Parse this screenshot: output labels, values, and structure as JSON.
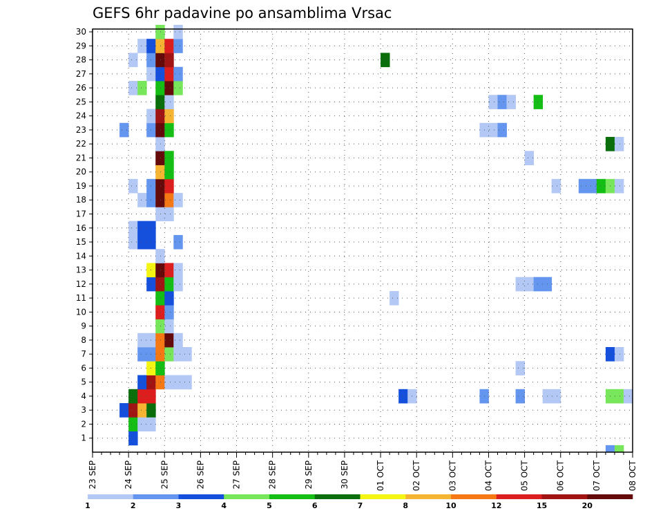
{
  "chart_data": {
    "type": "heatmap",
    "title": "GEFS 6hr padavine po ansamblima Vrsac",
    "xlabel": "",
    "ylabel": "",
    "y_ticks": [
      1,
      2,
      3,
      4,
      5,
      6,
      7,
      8,
      9,
      10,
      11,
      12,
      13,
      14,
      15,
      16,
      17,
      18,
      19,
      20,
      21,
      22,
      23,
      24,
      25,
      26,
      27,
      28,
      29,
      30
    ],
    "ylim": [
      0,
      30
    ],
    "x_ticks": [
      "23 SEP",
      "24 SEP",
      "25 SEP",
      "26 SEP",
      "27 SEP",
      "28 SEP",
      "29 SEP",
      "30 SEP",
      "01 OCT",
      "02 OCT",
      "03 OCT",
      "04 OCT",
      "05 OCT",
      "06 OCT",
      "07 OCT",
      "08 OCT"
    ],
    "x_unit": "6-hour step (4 per day) starting 23 SEP 00Z",
    "xlim": [
      0,
      60
    ],
    "grid": true,
    "colorbar": {
      "labels": [
        "1",
        "2",
        "3",
        "4",
        "5",
        "6",
        "7",
        "8",
        "10",
        "12",
        "15",
        "20"
      ],
      "colors": [
        "#b4c8f5",
        "#6496f0",
        "#1450dc",
        "#78e65a",
        "#14be14",
        "#0a6e0a",
        "#f5f514",
        "#f5b432",
        "#f57814",
        "#dc1e1e",
        "#a01414",
        "#640a0a"
      ]
    },
    "cells": [
      [
        1,
        4,
        3
      ],
      [
        2,
        4,
        5
      ],
      [
        2,
        5,
        1
      ],
      [
        2,
        6,
        1
      ],
      [
        3,
        3,
        3
      ],
      [
        3,
        4,
        11
      ],
      [
        3,
        5,
        8
      ],
      [
        3,
        6,
        6
      ],
      [
        4,
        4,
        6
      ],
      [
        4,
        5,
        10
      ],
      [
        4,
        6,
        10
      ],
      [
        5,
        5,
        3
      ],
      [
        5,
        6,
        11
      ],
      [
        5,
        7,
        9
      ],
      [
        5,
        8,
        1
      ],
      [
        5,
        9,
        1
      ],
      [
        5,
        10,
        1
      ],
      [
        6,
        6,
        7
      ],
      [
        6,
        7,
        5
      ],
      [
        7,
        5,
        2
      ],
      [
        7,
        6,
        2
      ],
      [
        7,
        7,
        9
      ],
      [
        7,
        8,
        4
      ],
      [
        7,
        9,
        1
      ],
      [
        7,
        10,
        1
      ],
      [
        8,
        5,
        1
      ],
      [
        8,
        6,
        1
      ],
      [
        8,
        7,
        9
      ],
      [
        8,
        8,
        12
      ],
      [
        8,
        9,
        1
      ],
      [
        9,
        7,
        4
      ],
      [
        9,
        8,
        1
      ],
      [
        10,
        7,
        10
      ],
      [
        10,
        8,
        2
      ],
      [
        11,
        7,
        5
      ],
      [
        11,
        8,
        3
      ],
      [
        12,
        6,
        3
      ],
      [
        12,
        7,
        11
      ],
      [
        12,
        8,
        5
      ],
      [
        12,
        9,
        1
      ],
      [
        13,
        6,
        7
      ],
      [
        13,
        7,
        12
      ],
      [
        13,
        8,
        10
      ],
      [
        13,
        9,
        1
      ],
      [
        14,
        7,
        1
      ],
      [
        15,
        4,
        1
      ],
      [
        15,
        5,
        3
      ],
      [
        15,
        6,
        3
      ],
      [
        15,
        9,
        2
      ],
      [
        16,
        4,
        1
      ],
      [
        16,
        5,
        3
      ],
      [
        16,
        6,
        3
      ],
      [
        17,
        7,
        1
      ],
      [
        17,
        8,
        1
      ],
      [
        18,
        5,
        1
      ],
      [
        18,
        6,
        2
      ],
      [
        18,
        7,
        12
      ],
      [
        18,
        8,
        9
      ],
      [
        18,
        9,
        1
      ],
      [
        19,
        4,
        1
      ],
      [
        19,
        6,
        2
      ],
      [
        19,
        7,
        12
      ],
      [
        19,
        8,
        10
      ],
      [
        20,
        7,
        8
      ],
      [
        20,
        8,
        5
      ],
      [
        21,
        7,
        12
      ],
      [
        21,
        8,
        5
      ],
      [
        22,
        7,
        1
      ],
      [
        23,
        3,
        2
      ],
      [
        23,
        6,
        2
      ],
      [
        23,
        7,
        12
      ],
      [
        23,
        8,
        5
      ],
      [
        24,
        6,
        1
      ],
      [
        24,
        7,
        11
      ],
      [
        24,
        8,
        8
      ],
      [
        25,
        7,
        6
      ],
      [
        25,
        8,
        1
      ],
      [
        26,
        4,
        1
      ],
      [
        26,
        5,
        4
      ],
      [
        26,
        7,
        5
      ],
      [
        26,
        8,
        12
      ],
      [
        26,
        9,
        4
      ],
      [
        27,
        6,
        1
      ],
      [
        27,
        7,
        3
      ],
      [
        27,
        8,
        10
      ],
      [
        27,
        9,
        2
      ],
      [
        28,
        4,
        1
      ],
      [
        28,
        6,
        2
      ],
      [
        28,
        7,
        12
      ],
      [
        28,
        8,
        11
      ],
      [
        29,
        5,
        1
      ],
      [
        29,
        6,
        3
      ],
      [
        29,
        7,
        8
      ],
      [
        29,
        8,
        10
      ],
      [
        29,
        9,
        2
      ],
      [
        30,
        7,
        4
      ],
      [
        30,
        9,
        1
      ],
      [
        28,
        32,
        6
      ],
      [
        11,
        33,
        1
      ],
      [
        4,
        34,
        3
      ],
      [
        4,
        35,
        1
      ],
      [
        25,
        44,
        1
      ],
      [
        25,
        45,
        2
      ],
      [
        25,
        46,
        1
      ],
      [
        23,
        43,
        1
      ],
      [
        23,
        44,
        1
      ],
      [
        23,
        45,
        2
      ],
      [
        4,
        43,
        2
      ],
      [
        12,
        47,
        1
      ],
      [
        12,
        48,
        1
      ],
      [
        12,
        49,
        2
      ],
      [
        12,
        50,
        2
      ],
      [
        4,
        47,
        2
      ],
      [
        6,
        47,
        1
      ],
      [
        21,
        48,
        1
      ],
      [
        25,
        49,
        5
      ],
      [
        4,
        50,
        1
      ],
      [
        4,
        51,
        1
      ],
      [
        19,
        51,
        1
      ],
      [
        19,
        54,
        2
      ],
      [
        19,
        55,
        2
      ],
      [
        19,
        56,
        5
      ],
      [
        19,
        57,
        4
      ],
      [
        19,
        58,
        1
      ],
      [
        22,
        57,
        6
      ],
      [
        22,
        58,
        1
      ],
      [
        7,
        57,
        3
      ],
      [
        7,
        58,
        1
      ],
      [
        4,
        57,
        4
      ],
      [
        4,
        58,
        4
      ],
      [
        4,
        59,
        1
      ],
      [
        0,
        57,
        2
      ],
      [
        0,
        58,
        4
      ]
    ]
  }
}
